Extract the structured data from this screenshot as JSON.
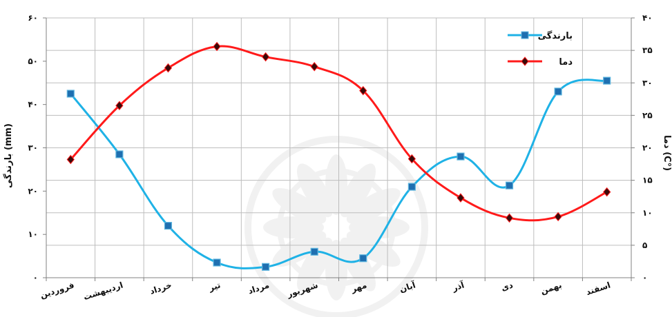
{
  "chart_data": {
    "type": "line",
    "categories": [
      "فروردین",
      "اردیبهشت",
      "خرداد",
      "تیر",
      "مرداد",
      "شهریور",
      "مهر",
      "آبان",
      "آذر",
      "دی",
      "بهمن",
      "اسفند"
    ],
    "series": [
      {
        "name": "بارندگی",
        "axis": "left",
        "color": "#1fb2e6",
        "marker_color": "#1f6fb0",
        "values": [
          42.5,
          28.5,
          12,
          3.5,
          2.5,
          6,
          4.5,
          21,
          28,
          21.3,
          43,
          45.5
        ]
      },
      {
        "name": "دما",
        "axis": "right",
        "color": "#ff1a1a",
        "marker_color": "#3a0a0a",
        "values": [
          18.2,
          26.5,
          32.3,
          35.6,
          34,
          32.5,
          28.8,
          18.3,
          12.3,
          9.2,
          9.4,
          13.2
        ]
      }
    ],
    "left_axis": {
      "label": "بارندگی (mm)",
      "ylim": [
        0,
        60
      ],
      "ticks": [
        0,
        10,
        20,
        30,
        40,
        50,
        60
      ],
      "tick_labels": [
        "۰",
        "۱۰",
        "۲۰",
        "۳۰",
        "۴۰",
        "۵۰",
        "۶۰"
      ]
    },
    "right_axis": {
      "label": "دما (C°)",
      "ylim": [
        0,
        40
      ],
      "ticks": [
        0,
        5,
        10,
        15,
        20,
        25,
        30,
        35,
        40
      ],
      "tick_labels": [
        "۰",
        "۵",
        "۱۰",
        "۱۵",
        "۲۰",
        "۲۵",
        "۳۰",
        "۳۵",
        "۴۰"
      ]
    },
    "grid": true,
    "legend_position": "top-right",
    "legend": [
      {
        "label": "بارندگی",
        "series": 0
      },
      {
        "label": "دما",
        "series": 1
      }
    ]
  }
}
